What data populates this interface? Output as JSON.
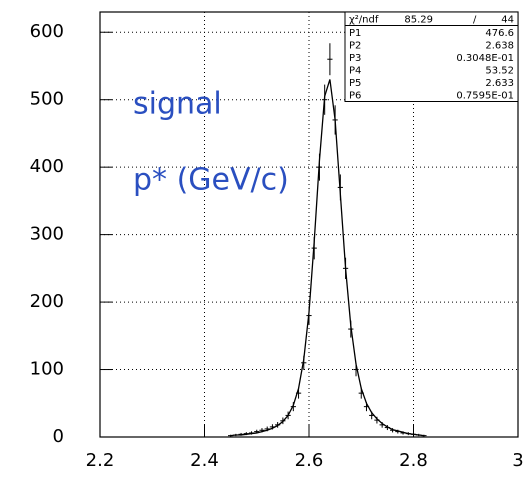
{
  "chart_data": {
    "type": "scatter",
    "xlim": [
      2.2,
      3
    ],
    "xticks": [
      2.2,
      2.4,
      2.6,
      2.8,
      3
    ],
    "ylim": [
      0,
      630
    ],
    "yticks": [
      0,
      100,
      200,
      300,
      400,
      500,
      600
    ],
    "grid": true,
    "color": "#000000",
    "annotation_color": "#2a4fc0",
    "annotations": [
      "signal",
      "p* (GeV/c)"
    ],
    "x": [
      2.45,
      2.46,
      2.47,
      2.48,
      2.49,
      2.5,
      2.51,
      2.52,
      2.53,
      2.54,
      2.55,
      2.56,
      2.57,
      2.58,
      2.59,
      2.6,
      2.61,
      2.62,
      2.63,
      2.64,
      2.65,
      2.66,
      2.67,
      2.68,
      2.69,
      2.7,
      2.71,
      2.72,
      2.73,
      2.74,
      2.75,
      2.76,
      2.77,
      2.78,
      2.79,
      2.8,
      2.81,
      2.82
    ],
    "values": [
      2,
      3,
      4,
      5,
      6,
      8,
      10,
      12,
      15,
      18,
      24,
      32,
      45,
      65,
      110,
      180,
      280,
      400,
      500,
      560,
      470,
      370,
      250,
      160,
      100,
      65,
      45,
      32,
      25,
      18,
      14,
      10,
      8,
      6,
      5,
      4,
      3,
      2
    ],
    "errors": [
      1.4,
      1.7,
      2,
      2.2,
      2.4,
      2.8,
      3.2,
      3.5,
      3.9,
      4.2,
      4.9,
      5.7,
      6.7,
      8.1,
      10.5,
      13.4,
      16.7,
      20,
      22.4,
      23.7,
      21.7,
      19.2,
      15.8,
      12.6,
      10,
      8.1,
      6.7,
      5.7,
      5,
      4.2,
      3.7,
      3.2,
      2.8,
      2.4,
      2.2,
      2,
      1.7,
      1.4
    ],
    "fit_values": [
      2,
      3,
      3,
      4,
      5,
      6,
      8,
      10,
      13,
      17,
      23,
      32,
      47,
      72,
      115,
      185,
      290,
      410,
      505,
      530,
      470,
      360,
      250,
      165,
      108,
      72,
      50,
      36,
      27,
      20,
      15,
      11,
      9,
      7,
      5,
      4,
      3,
      2
    ],
    "stats_box": {
      "header": [
        "χ²/ndf",
        "85.29",
        "/",
        "44"
      ],
      "rows": [
        [
          "P1",
          "476.6"
        ],
        [
          "P2",
          "2.638"
        ],
        [
          "P3",
          "0.3048E-01"
        ],
        [
          "P4",
          "53.52"
        ],
        [
          "P5",
          "2.633"
        ],
        [
          "P6",
          "0.7595E-01"
        ]
      ]
    }
  }
}
